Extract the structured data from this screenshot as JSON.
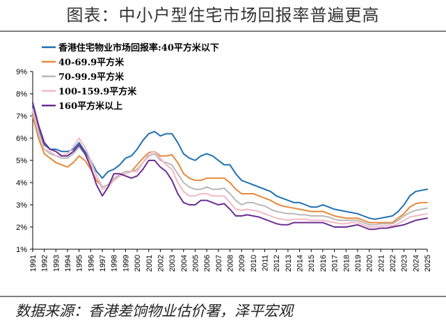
{
  "header": {
    "title": "图表：中小户型住宅市场回报率普遍更高"
  },
  "footer": {
    "source": "数据来源：香港差饷物业估价署，泽平宏观"
  },
  "chart_data": {
    "type": "line",
    "x": [
      1991,
      1991.5,
      1992,
      1992.5,
      1993,
      1993.5,
      1994,
      1994.5,
      1995,
      1995.5,
      1996,
      1996.5,
      1997,
      1997.5,
      1998,
      1998.5,
      1999,
      1999.5,
      2000,
      2000.5,
      2001,
      2001.5,
      2002,
      2002.5,
      2003,
      2003.5,
      2004,
      2004.5,
      2005,
      2005.5,
      2006,
      2006.5,
      2007,
      2007.5,
      2008,
      2008.5,
      2009,
      2009.5,
      2010,
      2010.5,
      2011,
      2011.5,
      2012,
      2012.5,
      2013,
      2013.5,
      2014,
      2014.5,
      2015,
      2015.5,
      2016,
      2016.5,
      2017,
      2017.5,
      2018,
      2018.5,
      2019,
      2019.5,
      2020,
      2020.5,
      2021,
      2021.5,
      2022,
      2022.5,
      2023,
      2023.5,
      2024,
      2024.5,
      2025
    ],
    "x_ticks": [
      "1991",
      "1992",
      "1993",
      "1994",
      "1995",
      "1996",
      "1997",
      "1998",
      "1999",
      "2000",
      "2001",
      "2002",
      "2003",
      "2004",
      "2005",
      "2006",
      "2007",
      "2008",
      "2009",
      "2010",
      "2011",
      "2012",
      "2013",
      "2014",
      "2015",
      "2016",
      "2017",
      "2018",
      "2019",
      "2020",
      "2021",
      "2022",
      "2023",
      "2024",
      "2025"
    ],
    "y_ticks": [
      "1%",
      "2%",
      "3%",
      "4%",
      "5%",
      "6%",
      "7%",
      "8%",
      "9%"
    ],
    "ylim": [
      1,
      9
    ],
    "grid": false,
    "legend_position": "top-left",
    "series": [
      {
        "name": "香港住宅物业市场回报率:40平方米以下",
        "color": "#1f6fb0",
        "values": [
          7.4,
          6.4,
          5.7,
          5.5,
          5.5,
          5.4,
          5.4,
          5.5,
          5.8,
          5.4,
          5.0,
          4.5,
          4.2,
          4.5,
          4.6,
          4.8,
          5.1,
          5.2,
          5.5,
          5.9,
          6.2,
          6.3,
          6.1,
          6.2,
          6.2,
          5.8,
          5.3,
          5.1,
          5.0,
          5.2,
          5.3,
          5.2,
          5.0,
          4.8,
          4.8,
          4.4,
          4.1,
          4.0,
          3.9,
          3.8,
          3.7,
          3.6,
          3.4,
          3.3,
          3.2,
          3.1,
          3.1,
          3.0,
          2.9,
          2.9,
          3.0,
          2.9,
          2.8,
          2.75,
          2.7,
          2.65,
          2.6,
          2.5,
          2.4,
          2.35,
          2.4,
          2.45,
          2.5,
          2.7,
          3.0,
          3.4,
          3.6,
          3.65,
          3.7
        ]
      },
      {
        "name": "40-69.9平方米",
        "color": "#e6883a",
        "values": [
          7.0,
          6.0,
          5.3,
          5.1,
          4.9,
          4.8,
          4.7,
          4.9,
          5.2,
          5.0,
          4.6,
          4.1,
          3.8,
          3.9,
          4.1,
          4.3,
          4.4,
          4.5,
          4.8,
          5.1,
          5.35,
          5.4,
          5.2,
          5.2,
          5.25,
          4.9,
          4.4,
          4.2,
          4.1,
          4.1,
          4.2,
          4.2,
          4.2,
          4.2,
          4.0,
          3.7,
          3.5,
          3.5,
          3.5,
          3.4,
          3.3,
          3.2,
          3.05,
          2.95,
          2.9,
          2.85,
          2.8,
          2.75,
          2.7,
          2.7,
          2.7,
          2.6,
          2.5,
          2.45,
          2.4,
          2.4,
          2.4,
          2.3,
          2.2,
          2.2,
          2.2,
          2.2,
          2.2,
          2.4,
          2.6,
          2.9,
          3.05,
          3.1,
          3.1
        ]
      },
      {
        "name": "70-99.9平方米",
        "color": "#b8b8b8",
        "values": [
          7.2,
          6.2,
          5.5,
          5.3,
          5.2,
          5.1,
          5.1,
          5.3,
          5.6,
          5.3,
          4.9,
          4.3,
          3.8,
          3.9,
          4.2,
          4.35,
          4.5,
          4.5,
          4.6,
          4.9,
          5.2,
          5.3,
          5.0,
          4.9,
          4.8,
          4.4,
          4.0,
          3.8,
          3.7,
          3.7,
          3.8,
          3.7,
          3.7,
          3.75,
          3.5,
          3.2,
          3.0,
          3.1,
          3.1,
          3.0,
          2.95,
          2.8,
          2.7,
          2.65,
          2.6,
          2.6,
          2.55,
          2.55,
          2.5,
          2.5,
          2.5,
          2.45,
          2.35,
          2.3,
          2.3,
          2.3,
          2.3,
          2.2,
          2.1,
          2.1,
          2.15,
          2.15,
          2.15,
          2.3,
          2.5,
          2.65,
          2.75,
          2.8,
          2.85
        ]
      },
      {
        "name": "100-159.9平方米",
        "color": "#f2b8c3",
        "values": [
          7.3,
          6.3,
          5.5,
          5.4,
          5.2,
          5.2,
          5.3,
          5.6,
          6.0,
          5.6,
          5.0,
          4.3,
          3.7,
          3.8,
          4.1,
          4.3,
          4.4,
          4.5,
          4.5,
          4.9,
          5.3,
          5.4,
          5.1,
          4.8,
          4.6,
          4.0,
          3.6,
          3.4,
          3.4,
          3.5,
          3.5,
          3.4,
          3.4,
          3.4,
          3.1,
          2.8,
          2.75,
          2.8,
          2.75,
          2.7,
          2.6,
          2.5,
          2.4,
          2.35,
          2.3,
          2.35,
          2.35,
          2.35,
          2.3,
          2.3,
          2.3,
          2.25,
          2.2,
          2.15,
          2.15,
          2.2,
          2.2,
          2.1,
          2.0,
          2.0,
          2.05,
          2.05,
          2.05,
          2.15,
          2.3,
          2.45,
          2.5,
          2.55,
          2.6
        ]
      },
      {
        "name": "160平方米以上",
        "color": "#6b2c91",
        "values": [
          7.6,
          6.6,
          5.8,
          5.5,
          5.4,
          5.2,
          5.2,
          5.4,
          5.7,
          5.3,
          4.7,
          3.9,
          3.4,
          3.8,
          4.4,
          4.4,
          4.3,
          4.2,
          4.3,
          4.6,
          5.0,
          5.0,
          4.7,
          4.5,
          4.1,
          3.5,
          3.1,
          3.0,
          3.0,
          3.2,
          3.2,
          3.1,
          3.0,
          3.05,
          2.8,
          2.5,
          2.5,
          2.55,
          2.5,
          2.45,
          2.35,
          2.25,
          2.15,
          2.1,
          2.1,
          2.2,
          2.2,
          2.2,
          2.2,
          2.2,
          2.2,
          2.1,
          2.0,
          2.0,
          2.0,
          2.05,
          2.1,
          2.0,
          1.9,
          1.9,
          1.95,
          1.95,
          2.0,
          2.05,
          2.1,
          2.2,
          2.3,
          2.35,
          2.4
        ]
      }
    ]
  }
}
